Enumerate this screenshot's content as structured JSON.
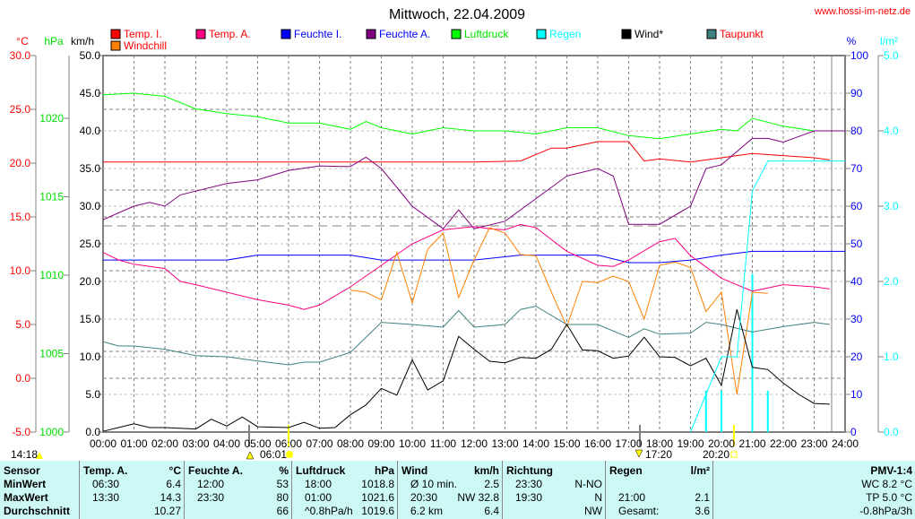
{
  "header": {
    "title": "Mittwoch, 22.04.2009",
    "website": "www.hossi-im-netz.de"
  },
  "chart_data": {
    "type": "line",
    "title": "Mittwoch, 22.04.2009",
    "x_unit": "hour",
    "xlim": [
      0,
      24
    ],
    "x_ticks": [
      "00:00",
      "01:00",
      "02:00",
      "03:00",
      "04:00",
      "05:00",
      "06:00",
      "07:00",
      "08:00",
      "09:00",
      "10:00",
      "11:00",
      "12:00",
      "13:00",
      "14:00",
      "15:00",
      "16:00",
      "17:00",
      "18:00",
      "19:00",
      "20:00",
      "21:00",
      "22:00",
      "23:00",
      "24:00"
    ],
    "axes": {
      "temp": {
        "label": "°C",
        "range": [
          -5,
          30
        ],
        "ticks": [
          "30.0",
          "25.0",
          "20.0",
          "15.0",
          "10.0",
          "5.0",
          "0.0",
          "-5.0"
        ],
        "color": "#ff0000"
      },
      "pressure": {
        "label": "hPa",
        "range": [
          1000,
          1024
        ],
        "ticks": [
          "1020",
          "1015",
          "1010",
          "1005",
          "1000"
        ],
        "color": "#00e000"
      },
      "wind": {
        "label": "km/h",
        "range": [
          0,
          50
        ],
        "ticks": [
          "50.0",
          "45.0",
          "40.0",
          "35.0",
          "30.0",
          "25.0",
          "20.0",
          "15.0",
          "10.0",
          "5.0",
          "0.0"
        ],
        "color": "#000000"
      },
      "humidity": {
        "label": "%",
        "range": [
          0,
          100
        ],
        "ticks": [
          "100",
          "90",
          "80",
          "70",
          "60",
          "50",
          "40",
          "30",
          "20",
          "10",
          "0"
        ],
        "color": "#0000ff"
      },
      "rain": {
        "label": "l/m²",
        "range": [
          0,
          5
        ],
        "ticks": [
          "5.0",
          "4.0",
          "3.0",
          "2.0",
          "1.0",
          "0.0"
        ],
        "color": "#00ffff"
      }
    },
    "legend": [
      {
        "name": "Temp. I.",
        "color": "#ff0000",
        "text_color": "#ff0000"
      },
      {
        "name": "Temp. A.",
        "color": "#ff0080",
        "text_color": "#ff0000"
      },
      {
        "name": "Feuchte I.",
        "color": "#0000ff",
        "text_color": "#0000ff"
      },
      {
        "name": "Feuchte A.",
        "color": "#800080",
        "text_color": "#0000ff"
      },
      {
        "name": "Luftdruck",
        "color": "#00ff00",
        "text_color": "#00e000"
      },
      {
        "name": "Regen",
        "color": "#00ffff",
        "text_color": "#00ffff"
      },
      {
        "name": "Wind*",
        "color": "#000000",
        "text_color": "#000000"
      },
      {
        "name": "Taupunkt",
        "color": "#408080",
        "text_color": "#ff0000"
      },
      {
        "name": "Windchill",
        "color": "#ff8000",
        "text_color": "#ff0000"
      }
    ],
    "series": [
      {
        "name": "Luftdruck",
        "axis": "pressure",
        "color": "#00ff00",
        "x": [
          0,
          1,
          2,
          3,
          4,
          5,
          6,
          7,
          8,
          8.5,
          9,
          10,
          11,
          12,
          13,
          14,
          15,
          16,
          17,
          18,
          19,
          20,
          20.5,
          21,
          22,
          23,
          24
        ],
        "y": [
          1021.5,
          1021.6,
          1021.4,
          1020.6,
          1020.3,
          1020.1,
          1019.7,
          1019.7,
          1019.3,
          1019.8,
          1019.4,
          1019.0,
          1019.4,
          1019.2,
          1019.2,
          1019.0,
          1019.4,
          1019.4,
          1018.9,
          1018.7,
          1019.0,
          1019.3,
          1019.2,
          1020.0,
          1019.5,
          1019.2,
          1019.2
        ]
      },
      {
        "name": "Temp. I.",
        "axis": "temp",
        "color": "#ff0000",
        "x": [
          0,
          4,
          8,
          12,
          13.5,
          14,
          14.5,
          15,
          16,
          17,
          17.5,
          18,
          19,
          20,
          21,
          22,
          23,
          23.5
        ],
        "y": [
          20.1,
          20.1,
          20.1,
          20.1,
          20.2,
          20.8,
          21.4,
          21.4,
          22.0,
          22.0,
          20.2,
          20.4,
          20.1,
          20.5,
          20.9,
          20.7,
          20.5,
          20.3
        ]
      },
      {
        "name": "Feuchte A.",
        "axis": "humidity",
        "color": "#800080",
        "x": [
          0,
          1,
          1.5,
          2,
          2.5,
          3,
          4,
          5,
          6,
          7,
          8,
          8.5,
          9,
          10,
          11,
          11.5,
          12,
          13,
          14,
          15,
          16,
          16.5,
          17,
          18,
          19,
          19.5,
          20,
          21,
          21.5,
          22,
          23,
          24
        ],
        "y": [
          56.4,
          60,
          61,
          60,
          63,
          64,
          66,
          67,
          69.5,
          70.7,
          70.5,
          73,
          70,
          60,
          54,
          59,
          54,
          56,
          62,
          68,
          70,
          68,
          55.2,
          55.2,
          60,
          70,
          71,
          78,
          78,
          77,
          80,
          80
        ]
      },
      {
        "name": "Feuchte I.",
        "axis": "humidity",
        "color": "#0000ff",
        "x": [
          0,
          4,
          5,
          8,
          9,
          12,
          13.5,
          14,
          16,
          17,
          18,
          19,
          20,
          21,
          24
        ],
        "y": [
          45.7,
          45.7,
          47,
          47,
          45.7,
          45.7,
          47,
          47,
          47,
          45,
          45,
          45.7,
          47,
          48,
          48
        ]
      },
      {
        "name": "Temp. A.",
        "axis": "temp",
        "color": "#ff0080",
        "x": [
          0,
          0.5,
          1,
          2,
          2.5,
          3,
          4,
          5,
          6,
          6.5,
          7,
          8,
          9,
          10,
          11,
          12,
          12.5,
          13,
          13.5,
          14,
          15,
          16,
          16.5,
          17,
          18,
          18.5,
          19,
          20,
          21,
          22,
          23,
          23.5
        ],
        "y": [
          11.7,
          11.0,
          10.6,
          10.2,
          9.0,
          8.7,
          8.0,
          7.3,
          6.8,
          6.4,
          6.8,
          8.5,
          10.5,
          12.5,
          13.8,
          14.1,
          13.9,
          13.8,
          14.3,
          14.0,
          11.8,
          10.5,
          10.4,
          11.0,
          12.7,
          13.0,
          11.4,
          9.3,
          8.1,
          8.7,
          8.5,
          8.3
        ]
      },
      {
        "name": "Windchill",
        "axis": "temp",
        "color": "#ff8000",
        "x": [
          8,
          8.5,
          9,
          9.5,
          10,
          10.5,
          11,
          11.5,
          12,
          12.5,
          13,
          13.5,
          14,
          14.5,
          15,
          15.5,
          16,
          16.5,
          17,
          17.5,
          18,
          18.5,
          19,
          19.5,
          20,
          20.5,
          21,
          21.5
        ],
        "y": [
          8.2,
          8.0,
          7.3,
          11.7,
          7.0,
          12.0,
          13.5,
          7.5,
          11.0,
          14.0,
          13.5,
          11.5,
          11.4,
          8.0,
          4.8,
          9.0,
          8.9,
          9.5,
          9.0,
          5.5,
          10.5,
          10.8,
          10.3,
          6.2,
          8.0,
          -1.5,
          8.0,
          7.9
        ]
      },
      {
        "name": "Taupunkt",
        "axis": "temp",
        "color": "#408080",
        "x": [
          0,
          0.5,
          1,
          2,
          3,
          4,
          5,
          6,
          6.5,
          7,
          8,
          9,
          10,
          11,
          11.5,
          12,
          13,
          13.5,
          14,
          15,
          16,
          17,
          17.5,
          18,
          19,
          19.5,
          20,
          21,
          22,
          23,
          23.5
        ],
        "y": [
          3.4,
          3.0,
          3.0,
          2.7,
          2.1,
          2.0,
          1.6,
          1.25,
          1.5,
          1.5,
          2.4,
          5.2,
          5.0,
          4.75,
          6.3,
          4.75,
          5.0,
          6.4,
          6.7,
          5.0,
          5.0,
          3.8,
          4.6,
          4.1,
          4.2,
          5.2,
          5.0,
          4.3,
          4.8,
          5.2,
          5.0
        ]
      },
      {
        "name": "Wind*",
        "axis": "wind",
        "color": "#000000",
        "x": [
          0,
          0.5,
          1,
          1.5,
          2,
          3,
          3.5,
          4,
          4.5,
          5,
          6,
          6.5,
          7,
          7.5,
          8,
          8.5,
          9,
          9.5,
          10,
          10.5,
          11,
          11.5,
          12,
          12.5,
          13,
          13.5,
          14,
          14.5,
          15,
          15.5,
          16,
          16.5,
          17,
          17.5,
          18,
          18.5,
          19,
          19.5,
          20,
          20.5,
          21,
          21.5,
          22,
          22.5,
          23,
          23.5
        ],
        "y": [
          0.1,
          0.6,
          1.1,
          0.6,
          0.6,
          0.4,
          1.7,
          0.8,
          2.0,
          0.7,
          0.6,
          1.3,
          0.5,
          0.6,
          2.3,
          3.6,
          5.8,
          4.9,
          9.6,
          5.6,
          6.8,
          12.7,
          11.0,
          9.4,
          9.2,
          9.9,
          9.8,
          11.0,
          14.3,
          10.9,
          10.8,
          9.8,
          10.1,
          12.6,
          10.0,
          9.9,
          8.8,
          9.8,
          6.2,
          16.3,
          8.6,
          8.3,
          6.5,
          5.0,
          3.8,
          3.7
        ]
      },
      {
        "name": "Regen",
        "axis": "rain",
        "color": "#00ffff",
        "x": [
          19,
          20,
          20.5,
          21,
          21.5,
          24
        ],
        "y": [
          0,
          1.0,
          1.0,
          3.2,
          3.6,
          3.6
        ]
      }
    ],
    "rain_bars": {
      "x": [
        19.5,
        20,
        21,
        21.5
      ],
      "y": [
        0.55,
        0.55,
        2.1,
        0.55
      ]
    },
    "events": [
      {
        "label": "14:18"
      },
      {
        "label": "06:01"
      },
      {
        "label": "17:20"
      },
      {
        "label": "20:20"
      }
    ]
  },
  "table": {
    "columns": [
      {
        "head": "Sensor",
        "unit": "",
        "rows": [
          [
            "MinWert",
            ""
          ],
          [
            "MaxWert",
            ""
          ],
          [
            "Durchschnitt",
            ""
          ]
        ],
        "bold": true
      },
      {
        "head": "Temp. A.",
        "unit": "°C",
        "rows": [
          [
            "06:30",
            "6.4"
          ],
          [
            "13:30",
            "14.3"
          ],
          [
            "",
            "10.27"
          ]
        ]
      },
      {
        "head": "Feuchte A.",
        "unit": "%",
        "rows": [
          [
            "12:00",
            "53"
          ],
          [
            "23:30",
            "80"
          ],
          [
            "",
            "66"
          ]
        ]
      },
      {
        "head": "Luftdruck",
        "unit": "hPa",
        "rows": [
          [
            "18:00",
            "1018.8"
          ],
          [
            "01:00",
            "1021.6"
          ],
          [
            "^0.8hPa/h",
            "1019.6"
          ]
        ]
      },
      {
        "head": "Wind",
        "unit": "km/h",
        "rows": [
          [
            "Ø 10 min.",
            "2.5"
          ],
          [
            "20:30",
            "NW 32.8"
          ],
          [
            "6.2 km",
            "6.4"
          ]
        ]
      },
      {
        "head": "Richtung",
        "unit": "",
        "rows": [
          [
            "23:30",
            "N-NO"
          ],
          [
            "19:30",
            "N"
          ],
          [
            "",
            "NW"
          ]
        ]
      },
      {
        "head": "Regen",
        "unit": "l/m²",
        "rows": [
          [
            "",
            ""
          ],
          [
            "21:00",
            "2.1"
          ],
          [
            "Gesamt:",
            "3.6"
          ]
        ]
      },
      {
        "head": "PMV-1:4",
        "unit": "",
        "rows": [
          [
            "",
            "WC 8.2 °C"
          ],
          [
            "",
            "TP 5.0 °C"
          ],
          [
            "",
            "-0.8hPa/3h"
          ]
        ]
      }
    ]
  }
}
